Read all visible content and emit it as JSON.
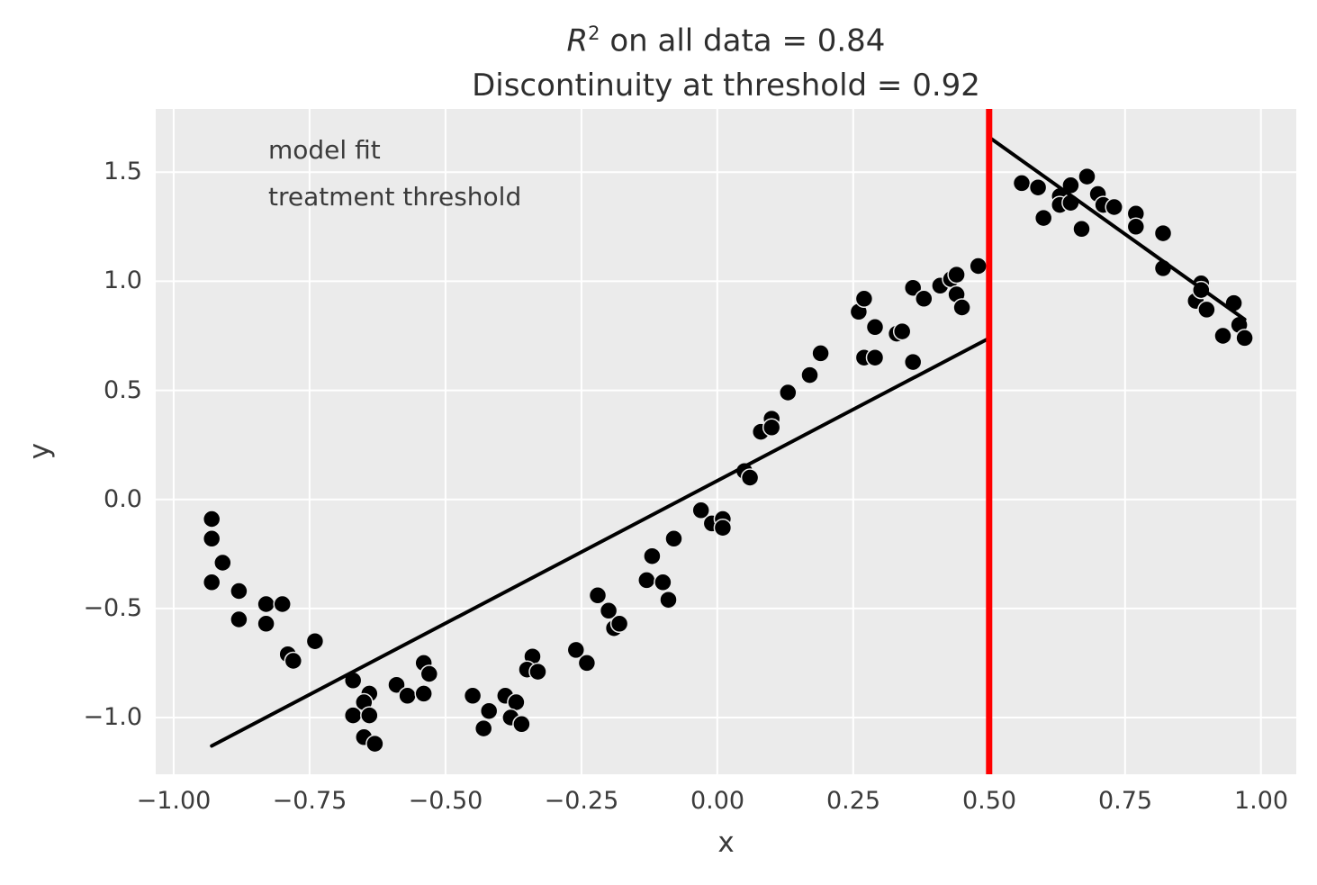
{
  "chart_data": {
    "type": "scatter",
    "title": {
      "line1_prefix_italic": "R",
      "line1_superscript": "2",
      "line1_rest": " on all data = 0.84",
      "line2": "Discontinuity at threshold = 0.92"
    },
    "r_squared_all_data": 0.84,
    "discontinuity_at_threshold": 0.92,
    "xlabel": "x",
    "ylabel": "y",
    "xlim": [
      -1.033,
      1.065
    ],
    "ylim": [
      -1.26,
      1.79
    ],
    "grid": true,
    "x_ticks": [
      -1.0,
      -0.75,
      -0.5,
      -0.25,
      0.0,
      0.25,
      0.5,
      0.75,
      1.0
    ],
    "x_tick_labels": [
      "−1.00",
      "−0.75",
      "−0.50",
      "−0.25",
      "0.00",
      "0.25",
      "0.50",
      "0.75",
      "1.00"
    ],
    "y_ticks": [
      -1.0,
      -0.5,
      0.0,
      0.5,
      1.0,
      1.5
    ],
    "y_tick_labels": [
      "−1.0",
      "−0.5",
      "0.0",
      "0.5",
      "1.0",
      "1.5"
    ],
    "legend": {
      "position": "upper left",
      "entries": [
        {
          "label": "model fit",
          "color": "#000000",
          "line_width": 4
        },
        {
          "label": "treatment threshold",
          "color": "#ff0000",
          "line_width": 9
        }
      ]
    },
    "threshold_x": 0.5,
    "model_fit_segments": [
      {
        "x": [
          -0.93,
          0.497
        ],
        "y": [
          -1.13,
          0.735
        ]
      },
      {
        "x": [
          0.503,
          0.97
        ],
        "y": [
          1.655,
          0.825
        ]
      }
    ],
    "scatter_points": [
      [
        -0.93,
        -0.09
      ],
      [
        -0.93,
        -0.18
      ],
      [
        -0.91,
        -0.29
      ],
      [
        -0.93,
        -0.38
      ],
      [
        -0.88,
        -0.42
      ],
      [
        -0.83,
        -0.48
      ],
      [
        -0.8,
        -0.48
      ],
      [
        -0.88,
        -0.55
      ],
      [
        -0.83,
        -0.57
      ],
      [
        -0.74,
        -0.65
      ],
      [
        -0.79,
        -0.71
      ],
      [
        -0.78,
        -0.74
      ],
      [
        -0.67,
        -0.83
      ],
      [
        -0.64,
        -0.89
      ],
      [
        -0.65,
        -0.93
      ],
      [
        -0.67,
        -0.99
      ],
      [
        -0.64,
        -0.99
      ],
      [
        -0.65,
        -1.09
      ],
      [
        -0.63,
        -1.12
      ],
      [
        -0.59,
        -0.85
      ],
      [
        -0.57,
        -0.9
      ],
      [
        -0.54,
        -0.89
      ],
      [
        -0.54,
        -0.75
      ],
      [
        -0.53,
        -0.8
      ],
      [
        -0.45,
        -0.9
      ],
      [
        -0.43,
        -1.05
      ],
      [
        -0.42,
        -0.97
      ],
      [
        -0.39,
        -0.9
      ],
      [
        -0.37,
        -0.93
      ],
      [
        -0.38,
        -1.0
      ],
      [
        -0.36,
        -1.03
      ],
      [
        -0.34,
        -0.72
      ],
      [
        -0.35,
        -0.78
      ],
      [
        -0.33,
        -0.79
      ],
      [
        -0.26,
        -0.69
      ],
      [
        -0.24,
        -0.75
      ],
      [
        -0.22,
        -0.44
      ],
      [
        -0.2,
        -0.51
      ],
      [
        -0.19,
        -0.59
      ],
      [
        -0.18,
        -0.57
      ],
      [
        -0.13,
        -0.37
      ],
      [
        -0.1,
        -0.38
      ],
      [
        -0.09,
        -0.46
      ],
      [
        -0.12,
        -0.26
      ],
      [
        -0.08,
        -0.18
      ],
      [
        -0.03,
        -0.05
      ],
      [
        -0.01,
        -0.11
      ],
      [
        0.01,
        -0.09
      ],
      [
        0.01,
        -0.13
      ],
      [
        0.05,
        0.13
      ],
      [
        0.06,
        0.1
      ],
      [
        0.08,
        0.31
      ],
      [
        0.1,
        0.37
      ],
      [
        0.1,
        0.33
      ],
      [
        0.13,
        0.49
      ],
      [
        0.17,
        0.57
      ],
      [
        0.19,
        0.67
      ],
      [
        0.26,
        0.86
      ],
      [
        0.27,
        0.92
      ],
      [
        0.27,
        0.65
      ],
      [
        0.29,
        0.65
      ],
      [
        0.29,
        0.79
      ],
      [
        0.33,
        0.76
      ],
      [
        0.34,
        0.77
      ],
      [
        0.36,
        0.97
      ],
      [
        0.36,
        0.63
      ],
      [
        0.38,
        0.92
      ],
      [
        0.41,
        0.98
      ],
      [
        0.43,
        1.01
      ],
      [
        0.44,
        1.03
      ],
      [
        0.44,
        0.94
      ],
      [
        0.45,
        0.88
      ],
      [
        0.48,
        1.07
      ],
      [
        0.56,
        1.45
      ],
      [
        0.59,
        1.43
      ],
      [
        0.6,
        1.29
      ],
      [
        0.63,
        1.39
      ],
      [
        0.63,
        1.35
      ],
      [
        0.65,
        1.44
      ],
      [
        0.65,
        1.36
      ],
      [
        0.67,
        1.24
      ],
      [
        0.68,
        1.48
      ],
      [
        0.7,
        1.4
      ],
      [
        0.71,
        1.35
      ],
      [
        0.73,
        1.34
      ],
      [
        0.77,
        1.31
      ],
      [
        0.77,
        1.25
      ],
      [
        0.82,
        1.22
      ],
      [
        0.82,
        1.06
      ],
      [
        0.88,
        0.91
      ],
      [
        0.89,
        0.99
      ],
      [
        0.89,
        0.96
      ],
      [
        0.9,
        0.87
      ],
      [
        0.93,
        0.75
      ],
      [
        0.95,
        0.9
      ],
      [
        0.96,
        0.8
      ],
      [
        0.97,
        0.74
      ]
    ],
    "colors": {
      "figure_background": "#ffffff",
      "plot_background": "#ebebeb",
      "grid": "#ffffff",
      "scatter": "#000000",
      "model_fit": "#000000",
      "threshold": "#ff0000",
      "text": "#3b3b3b",
      "title_text": "#2e2e2e"
    }
  }
}
